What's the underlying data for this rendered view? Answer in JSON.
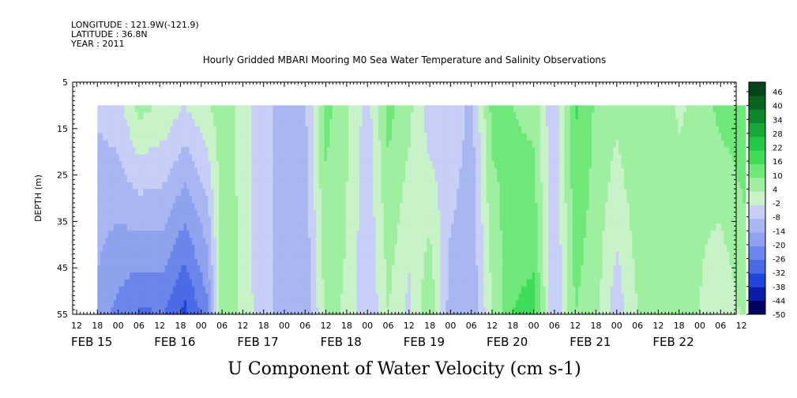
{
  "header": {
    "longitude": "LONGITUDE : 121.9W(-121.9)",
    "latitude": "LATITUDE : 36.8N",
    "year": "YEAR : 2011"
  },
  "chart_data": {
    "type": "heatmap",
    "title": "Hourly Gridded MBARI Mooring M0 Sea Water Temperature and Salinity Observations",
    "xlabel": "U Component of Water Velocity (cm s-1)",
    "ylabel": "DEPTH (m)",
    "y_ticks": [
      5,
      15,
      25,
      35,
      45,
      55
    ],
    "ylim": [
      5,
      55
    ],
    "y_inverted": true,
    "data_depth_range": [
      10,
      55
    ],
    "hour_ticks": [
      "12",
      "18",
      "00",
      "06",
      "12",
      "18",
      "00",
      "06",
      "12",
      "18",
      "00",
      "06",
      "12",
      "18",
      "00",
      "06",
      "12",
      "18",
      "00",
      "06",
      "12",
      "18",
      "00",
      "06",
      "12",
      "18",
      "00",
      "06",
      "12",
      "18",
      "00",
      "06",
      "12"
    ],
    "date_labels": [
      {
        "label": "FEB 15",
        "hour_index": 0
      },
      {
        "label": "FEB 16",
        "hour_index": 4
      },
      {
        "label": "FEB 17",
        "hour_index": 8
      },
      {
        "label": "FEB 18",
        "hour_index": 12
      },
      {
        "label": "FEB 19",
        "hour_index": 16
      },
      {
        "label": "FEB 20",
        "hour_index": 20
      },
      {
        "label": "FEB 21",
        "hour_index": 24
      },
      {
        "label": "FEB 22",
        "hour_index": 28
      }
    ],
    "colorbar": {
      "labels": [
        "46",
        "40",
        "34",
        "28",
        "22",
        "16",
        "10",
        "4",
        "-2",
        "-8",
        "-14",
        "-20",
        "-26",
        "-32",
        "-38",
        "-44",
        "-50"
      ],
      "min": -50,
      "max": 52,
      "step": 3,
      "colors_low_to_high": [
        "#000060",
        "#0a1da8",
        "#1e45dc",
        "#4a6ae6",
        "#6a86ea",
        "#8ea2ee",
        "#a9b6f2",
        "#c7cff6",
        "#c8f2c8",
        "#9ef0a0",
        "#6fe87a",
        "#3fdc5a",
        "#22c846",
        "#16a838",
        "#0e862b",
        "#08651f",
        "#04441a"
      ]
    },
    "time_start_hour_index": 1,
    "time_end_hour_index": 32.2,
    "profile_segments": [
      {
        "t": 1.0,
        "top": -7,
        "bottom": -16
      },
      {
        "t": 2.0,
        "top": -4,
        "bottom": -22
      },
      {
        "t": 3.0,
        "top": 6,
        "bottom": -27
      },
      {
        "t": 4.2,
        "top": 3,
        "bottom": -26
      },
      {
        "t": 5.2,
        "top": -2,
        "bottom": -34
      },
      {
        "t": 6.3,
        "top": 3,
        "bottom": -22
      },
      {
        "t": 7.0,
        "top": 7,
        "bottom": 9
      },
      {
        "t": 7.8,
        "top": 3,
        "bottom": 4
      },
      {
        "t": 8.6,
        "top": -4,
        "bottom": -3
      },
      {
        "t": 9.4,
        "top": -8,
        "bottom": -8
      },
      {
        "t": 10.2,
        "top": -10,
        "bottom": -12
      },
      {
        "t": 11.0,
        "top": -9,
        "bottom": -14
      },
      {
        "t": 12.0,
        "top": 12,
        "bottom": 6
      },
      {
        "t": 13.0,
        "top": 5,
        "bottom": 3
      },
      {
        "t": 14.0,
        "top": -5,
        "bottom": -8
      },
      {
        "t": 15.0,
        "top": 12,
        "bottom": 4
      },
      {
        "t": 16.0,
        "top": 6,
        "bottom": -4
      },
      {
        "t": 17.0,
        "top": -6,
        "bottom": 10
      },
      {
        "t": 18.0,
        "top": -2,
        "bottom": -12
      },
      {
        "t": 19.0,
        "top": -10,
        "bottom": -14
      },
      {
        "t": 20.0,
        "top": 12,
        "bottom": 4
      },
      {
        "t": 21.0,
        "top": 10,
        "bottom": 16
      },
      {
        "t": 22.0,
        "top": 8,
        "bottom": 18
      },
      {
        "t": 23.0,
        "top": -8,
        "bottom": -8
      },
      {
        "t": 24.0,
        "top": 17,
        "bottom": 10
      },
      {
        "t": 25.0,
        "top": 9,
        "bottom": 6
      },
      {
        "t": 26.0,
        "top": 6,
        "bottom": -6
      },
      {
        "t": 27.0,
        "top": 10,
        "bottom": 4
      },
      {
        "t": 28.0,
        "top": 8,
        "bottom": 6
      },
      {
        "t": 29.0,
        "top": 3,
        "bottom": 10
      },
      {
        "t": 30.0,
        "top": 6,
        "bottom": 4
      },
      {
        "t": 31.0,
        "top": 12,
        "bottom": -2
      },
      {
        "t": 32.2,
        "top": 14,
        "bottom": 6
      }
    ]
  }
}
